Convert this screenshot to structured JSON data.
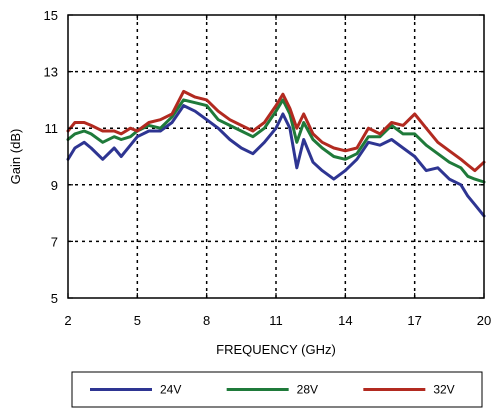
{
  "chart_data": {
    "type": "line",
    "xlabel": "FREQUENCY (GHz)",
    "ylabel": "Gain (dB)",
    "xlim": [
      2,
      20
    ],
    "ylim": [
      5,
      15
    ],
    "x_ticks": [
      2,
      5,
      8,
      11,
      14,
      17,
      20
    ],
    "y_ticks": [
      5,
      7,
      9,
      11,
      13,
      15
    ],
    "x_tick_labels": [
      "2",
      "5",
      "8",
      "11",
      "14",
      "17",
      "20"
    ],
    "y_tick_labels": [
      "5",
      "7",
      "9",
      "11",
      "13",
      "15"
    ],
    "grid": "dotted",
    "legend_placement": "bottom",
    "series": [
      {
        "name": "24V",
        "color": "#2e3592",
        "x": [
          2,
          2.3,
          2.7,
          3.0,
          3.5,
          4.0,
          4.3,
          4.7,
          5.0,
          5.5,
          6.0,
          6.5,
          7.0,
          7.5,
          8.0,
          8.5,
          9.0,
          9.5,
          10.0,
          10.5,
          11.0,
          11.3,
          11.6,
          11.9,
          12.2,
          12.6,
          13.0,
          13.5,
          14.0,
          14.5,
          15.0,
          15.5,
          16.0,
          16.5,
          17.0,
          17.5,
          18.0,
          18.5,
          19.0,
          19.3,
          19.6,
          20.0
        ],
        "y": [
          9.9,
          10.3,
          10.5,
          10.3,
          9.9,
          10.3,
          10.0,
          10.4,
          10.7,
          10.9,
          10.9,
          11.2,
          11.8,
          11.6,
          11.3,
          11.0,
          10.6,
          10.3,
          10.1,
          10.5,
          11.0,
          11.5,
          11.0,
          9.6,
          10.6,
          9.8,
          9.5,
          9.2,
          9.5,
          9.9,
          10.5,
          10.4,
          10.6,
          10.3,
          10.0,
          9.5,
          9.6,
          9.2,
          9.0,
          8.6,
          8.3,
          7.9
        ]
      },
      {
        "name": "28V",
        "color": "#1f7a3a",
        "x": [
          2,
          2.3,
          2.7,
          3.0,
          3.5,
          4.0,
          4.3,
          4.7,
          5.0,
          5.5,
          6.0,
          6.5,
          7.0,
          7.5,
          8.0,
          8.5,
          9.0,
          9.5,
          10.0,
          10.5,
          11.0,
          11.3,
          11.6,
          11.9,
          12.2,
          12.6,
          13.0,
          13.5,
          14.0,
          14.5,
          15.0,
          15.5,
          16.0,
          16.5,
          17.0,
          17.5,
          18.0,
          18.5,
          19.0,
          19.3,
          19.6,
          20.0
        ],
        "y": [
          10.6,
          10.8,
          10.9,
          10.8,
          10.5,
          10.7,
          10.6,
          10.7,
          10.9,
          11.1,
          11.0,
          11.4,
          12.0,
          11.9,
          11.8,
          11.3,
          11.1,
          10.9,
          10.7,
          11.0,
          11.6,
          12.0,
          11.5,
          10.5,
          11.2,
          10.6,
          10.3,
          10.0,
          9.9,
          10.1,
          10.7,
          10.7,
          11.1,
          10.8,
          10.8,
          10.4,
          10.1,
          9.8,
          9.6,
          9.3,
          9.2,
          9.1
        ]
      },
      {
        "name": "32V",
        "color": "#b22a20",
        "x": [
          2,
          2.3,
          2.7,
          3.0,
          3.5,
          4.0,
          4.3,
          4.7,
          5.0,
          5.5,
          6.0,
          6.5,
          7.0,
          7.5,
          8.0,
          8.5,
          9.0,
          9.5,
          10.0,
          10.5,
          11.0,
          11.3,
          11.6,
          11.9,
          12.2,
          12.6,
          13.0,
          13.5,
          14.0,
          14.5,
          15.0,
          15.5,
          16.0,
          16.5,
          17.0,
          17.5,
          18.0,
          18.5,
          19.0,
          19.3,
          19.6,
          20.0
        ],
        "y": [
          10.9,
          11.2,
          11.2,
          11.1,
          10.9,
          10.9,
          10.8,
          11.0,
          10.9,
          11.2,
          11.3,
          11.5,
          12.3,
          12.1,
          12.0,
          11.6,
          11.3,
          11.1,
          10.9,
          11.2,
          11.8,
          12.2,
          11.7,
          11.0,
          11.5,
          10.8,
          10.5,
          10.3,
          10.2,
          10.3,
          11.0,
          10.8,
          11.2,
          11.1,
          11.5,
          11.0,
          10.5,
          10.2,
          9.9,
          9.7,
          9.5,
          9.8
        ]
      }
    ]
  }
}
